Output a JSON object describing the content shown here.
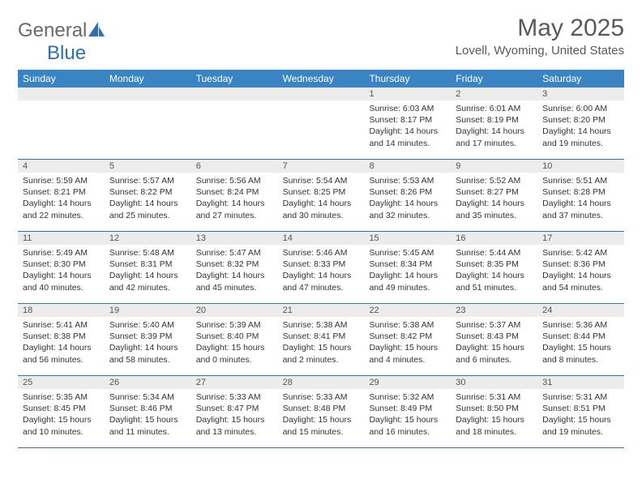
{
  "brand": {
    "part1": "General",
    "part2": "Blue"
  },
  "title": "May 2025",
  "location": "Lovell, Wyoming, United States",
  "colors": {
    "header_bg": "#3b84c4",
    "header_text": "#ffffff",
    "daynum_bg": "#ececec",
    "divider": "#3b6fa5",
    "title_color": "#595959",
    "logo_gray": "#6a6a6a",
    "logo_blue": "#2f6fb0"
  },
  "day_headers": [
    "Sunday",
    "Monday",
    "Tuesday",
    "Wednesday",
    "Thursday",
    "Friday",
    "Saturday"
  ],
  "weeks": [
    [
      {
        "num": "",
        "sunrise": "",
        "sunset": "",
        "daylight": ""
      },
      {
        "num": "",
        "sunrise": "",
        "sunset": "",
        "daylight": ""
      },
      {
        "num": "",
        "sunrise": "",
        "sunset": "",
        "daylight": ""
      },
      {
        "num": "",
        "sunrise": "",
        "sunset": "",
        "daylight": ""
      },
      {
        "num": "1",
        "sunrise": "Sunrise: 6:03 AM",
        "sunset": "Sunset: 8:17 PM",
        "daylight": "Daylight: 14 hours and 14 minutes."
      },
      {
        "num": "2",
        "sunrise": "Sunrise: 6:01 AM",
        "sunset": "Sunset: 8:19 PM",
        "daylight": "Daylight: 14 hours and 17 minutes."
      },
      {
        "num": "3",
        "sunrise": "Sunrise: 6:00 AM",
        "sunset": "Sunset: 8:20 PM",
        "daylight": "Daylight: 14 hours and 19 minutes."
      }
    ],
    [
      {
        "num": "4",
        "sunrise": "Sunrise: 5:59 AM",
        "sunset": "Sunset: 8:21 PM",
        "daylight": "Daylight: 14 hours and 22 minutes."
      },
      {
        "num": "5",
        "sunrise": "Sunrise: 5:57 AM",
        "sunset": "Sunset: 8:22 PM",
        "daylight": "Daylight: 14 hours and 25 minutes."
      },
      {
        "num": "6",
        "sunrise": "Sunrise: 5:56 AM",
        "sunset": "Sunset: 8:24 PM",
        "daylight": "Daylight: 14 hours and 27 minutes."
      },
      {
        "num": "7",
        "sunrise": "Sunrise: 5:54 AM",
        "sunset": "Sunset: 8:25 PM",
        "daylight": "Daylight: 14 hours and 30 minutes."
      },
      {
        "num": "8",
        "sunrise": "Sunrise: 5:53 AM",
        "sunset": "Sunset: 8:26 PM",
        "daylight": "Daylight: 14 hours and 32 minutes."
      },
      {
        "num": "9",
        "sunrise": "Sunrise: 5:52 AM",
        "sunset": "Sunset: 8:27 PM",
        "daylight": "Daylight: 14 hours and 35 minutes."
      },
      {
        "num": "10",
        "sunrise": "Sunrise: 5:51 AM",
        "sunset": "Sunset: 8:28 PM",
        "daylight": "Daylight: 14 hours and 37 minutes."
      }
    ],
    [
      {
        "num": "11",
        "sunrise": "Sunrise: 5:49 AM",
        "sunset": "Sunset: 8:30 PM",
        "daylight": "Daylight: 14 hours and 40 minutes."
      },
      {
        "num": "12",
        "sunrise": "Sunrise: 5:48 AM",
        "sunset": "Sunset: 8:31 PM",
        "daylight": "Daylight: 14 hours and 42 minutes."
      },
      {
        "num": "13",
        "sunrise": "Sunrise: 5:47 AM",
        "sunset": "Sunset: 8:32 PM",
        "daylight": "Daylight: 14 hours and 45 minutes."
      },
      {
        "num": "14",
        "sunrise": "Sunrise: 5:46 AM",
        "sunset": "Sunset: 8:33 PM",
        "daylight": "Daylight: 14 hours and 47 minutes."
      },
      {
        "num": "15",
        "sunrise": "Sunrise: 5:45 AM",
        "sunset": "Sunset: 8:34 PM",
        "daylight": "Daylight: 14 hours and 49 minutes."
      },
      {
        "num": "16",
        "sunrise": "Sunrise: 5:44 AM",
        "sunset": "Sunset: 8:35 PM",
        "daylight": "Daylight: 14 hours and 51 minutes."
      },
      {
        "num": "17",
        "sunrise": "Sunrise: 5:42 AM",
        "sunset": "Sunset: 8:36 PM",
        "daylight": "Daylight: 14 hours and 54 minutes."
      }
    ],
    [
      {
        "num": "18",
        "sunrise": "Sunrise: 5:41 AM",
        "sunset": "Sunset: 8:38 PM",
        "daylight": "Daylight: 14 hours and 56 minutes."
      },
      {
        "num": "19",
        "sunrise": "Sunrise: 5:40 AM",
        "sunset": "Sunset: 8:39 PM",
        "daylight": "Daylight: 14 hours and 58 minutes."
      },
      {
        "num": "20",
        "sunrise": "Sunrise: 5:39 AM",
        "sunset": "Sunset: 8:40 PM",
        "daylight": "Daylight: 15 hours and 0 minutes."
      },
      {
        "num": "21",
        "sunrise": "Sunrise: 5:38 AM",
        "sunset": "Sunset: 8:41 PM",
        "daylight": "Daylight: 15 hours and 2 minutes."
      },
      {
        "num": "22",
        "sunrise": "Sunrise: 5:38 AM",
        "sunset": "Sunset: 8:42 PM",
        "daylight": "Daylight: 15 hours and 4 minutes."
      },
      {
        "num": "23",
        "sunrise": "Sunrise: 5:37 AM",
        "sunset": "Sunset: 8:43 PM",
        "daylight": "Daylight: 15 hours and 6 minutes."
      },
      {
        "num": "24",
        "sunrise": "Sunrise: 5:36 AM",
        "sunset": "Sunset: 8:44 PM",
        "daylight": "Daylight: 15 hours and 8 minutes."
      }
    ],
    [
      {
        "num": "25",
        "sunrise": "Sunrise: 5:35 AM",
        "sunset": "Sunset: 8:45 PM",
        "daylight": "Daylight: 15 hours and 10 minutes."
      },
      {
        "num": "26",
        "sunrise": "Sunrise: 5:34 AM",
        "sunset": "Sunset: 8:46 PM",
        "daylight": "Daylight: 15 hours and 11 minutes."
      },
      {
        "num": "27",
        "sunrise": "Sunrise: 5:33 AM",
        "sunset": "Sunset: 8:47 PM",
        "daylight": "Daylight: 15 hours and 13 minutes."
      },
      {
        "num": "28",
        "sunrise": "Sunrise: 5:33 AM",
        "sunset": "Sunset: 8:48 PM",
        "daylight": "Daylight: 15 hours and 15 minutes."
      },
      {
        "num": "29",
        "sunrise": "Sunrise: 5:32 AM",
        "sunset": "Sunset: 8:49 PM",
        "daylight": "Daylight: 15 hours and 16 minutes."
      },
      {
        "num": "30",
        "sunrise": "Sunrise: 5:31 AM",
        "sunset": "Sunset: 8:50 PM",
        "daylight": "Daylight: 15 hours and 18 minutes."
      },
      {
        "num": "31",
        "sunrise": "Sunrise: 5:31 AM",
        "sunset": "Sunset: 8:51 PM",
        "daylight": "Daylight: 15 hours and 19 minutes."
      }
    ]
  ]
}
